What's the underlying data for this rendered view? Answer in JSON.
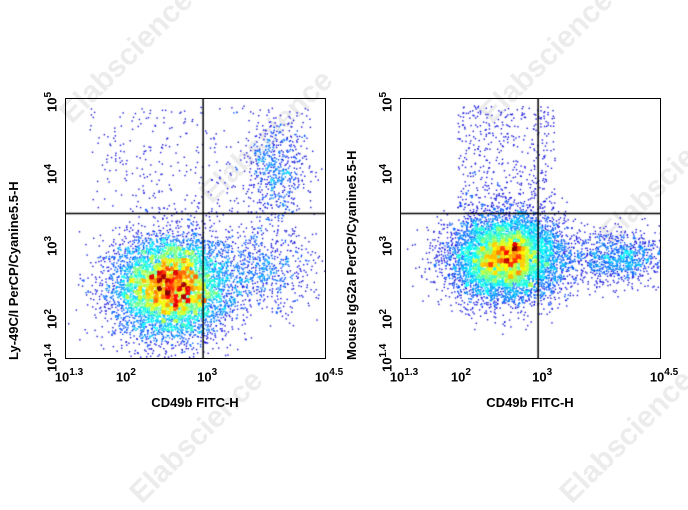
{
  "watermark": "Elabscience",
  "chart_data": [
    {
      "type": "scatter",
      "subtype": "flow-cytometry-density-dot-plot",
      "title": "",
      "xlabel": "CD49b FITC-H",
      "ylabel": "Ly-49C/I PerCP/Cyanine5.5-H",
      "x_scale": "log",
      "y_scale": "log",
      "xlim_log10": [
        1.3,
        4.5
      ],
      "ylim_log10": [
        1.4,
        5
      ],
      "x_ticks": [
        {
          "base": "10",
          "exp": "1.3"
        },
        {
          "base": "10",
          "exp": "2"
        },
        {
          "base": "10",
          "exp": "3"
        },
        {
          "base": "10",
          "exp": "4.5"
        }
      ],
      "y_ticks": [
        {
          "base": "10",
          "exp": "1.4"
        },
        {
          "base": "10",
          "exp": "2"
        },
        {
          "base": "10",
          "exp": "3"
        },
        {
          "base": "10",
          "exp": "4"
        },
        {
          "base": "10",
          "exp": "5"
        }
      ],
      "quadrant_gate": {
        "x_log10": 3.0,
        "y_log10": 3.4
      },
      "populations": [
        {
          "name": "main (CD49b- Ly-49C/I-)",
          "center_log10": [
            2.6,
            2.4
          ],
          "spread": [
            0.35,
            0.35
          ],
          "relative_size": 0.82
        },
        {
          "name": "CD49b+ Ly-49C/I+",
          "center_log10": [
            3.9,
            4.0
          ],
          "spread": [
            0.18,
            0.35
          ],
          "relative_size": 0.06
        },
        {
          "name": "CD49b+ Ly-49C/I-",
          "center_log10": [
            3.7,
            2.6
          ],
          "spread": [
            0.35,
            0.3
          ],
          "relative_size": 0.08
        },
        {
          "name": "scattered",
          "relative_size": 0.04
        }
      ],
      "grid": false,
      "legend": null
    },
    {
      "type": "scatter",
      "subtype": "flow-cytometry-density-dot-plot",
      "title": "",
      "xlabel": "CD49b FITC-H",
      "ylabel": "Mouse IgG2a PerCP/Cyanine5.5-H",
      "x_scale": "log",
      "y_scale": "log",
      "xlim_log10": [
        1.3,
        4.5
      ],
      "ylim_log10": [
        1.4,
        5
      ],
      "x_ticks": [
        {
          "base": "10",
          "exp": "1.3"
        },
        {
          "base": "10",
          "exp": "2"
        },
        {
          "base": "10",
          "exp": "3"
        },
        {
          "base": "10",
          "exp": "4.5"
        }
      ],
      "y_ticks": [
        {
          "base": "10",
          "exp": "1.4"
        },
        {
          "base": "10",
          "exp": "2"
        },
        {
          "base": "10",
          "exp": "3"
        },
        {
          "base": "10",
          "exp": "4"
        },
        {
          "base": "10",
          "exp": "5"
        }
      ],
      "quadrant_gate": {
        "x_log10": 3.0,
        "y_log10": 3.4
      },
      "populations": [
        {
          "name": "main (CD49b-)",
          "center_log10": [
            2.6,
            2.8
          ],
          "spread": [
            0.35,
            0.3
          ],
          "relative_size": 0.84
        },
        {
          "name": "CD49b+ isotype",
          "center_log10": [
            4.0,
            2.8
          ],
          "spread": [
            0.3,
            0.18
          ],
          "relative_size": 0.11
        },
        {
          "name": "scattered upper",
          "relative_size": 0.05
        }
      ],
      "grid": false,
      "legend": null
    }
  ],
  "panels": [
    {
      "xlabel": "CD49b FITC-H",
      "ylabel": "Ly-49C/I PerCP/Cyanine5.5-H"
    },
    {
      "xlabel": "CD49b FITC-H",
      "ylabel": "Mouse IgG2a PerCP/Cyanine5.5-H"
    }
  ]
}
